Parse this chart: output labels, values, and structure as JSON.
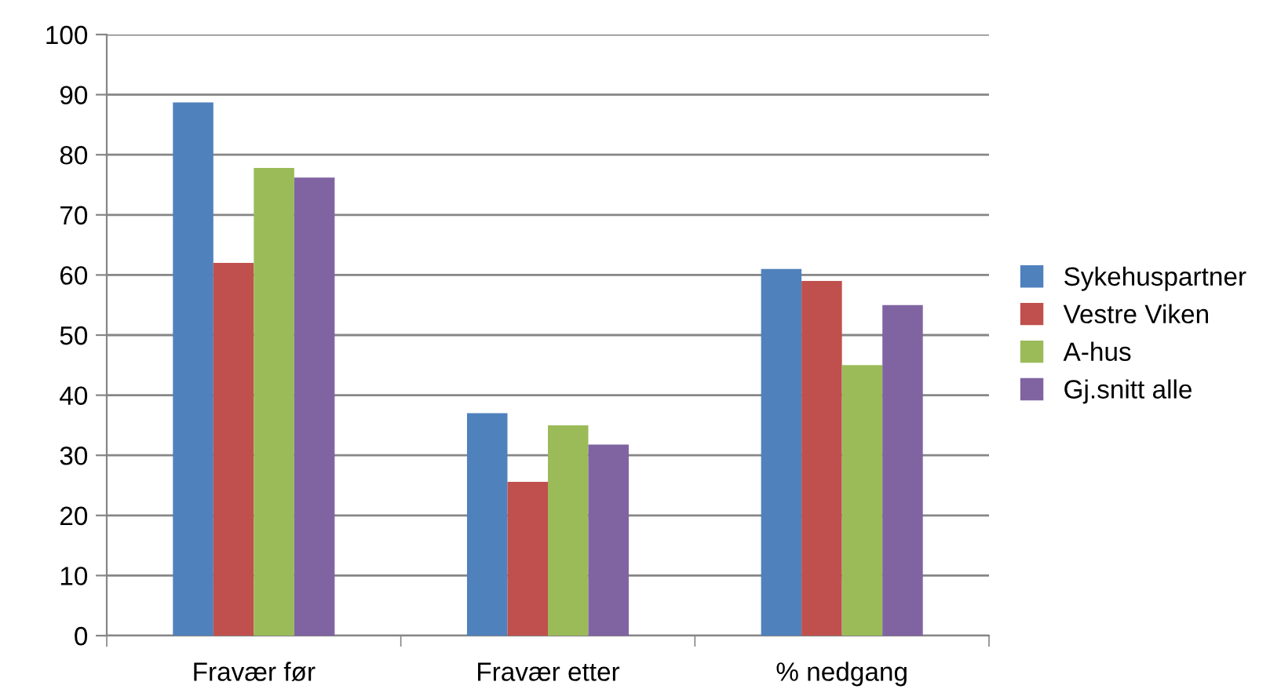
{
  "chart_data": {
    "type": "bar",
    "categories": [
      "Fravær før",
      "Fravær etter",
      "% nedgang"
    ],
    "series": [
      {
        "name": "Sykehuspartner",
        "color": "#4f81bd",
        "values": [
          88.7,
          37,
          61
        ]
      },
      {
        "name": "Vestre Viken",
        "color": "#c0504d",
        "values": [
          62,
          25.6,
          59
        ]
      },
      {
        "name": "A-hus",
        "color": "#9bbb59",
        "values": [
          77.8,
          35,
          45
        ]
      },
      {
        "name": "Gj.snitt alle",
        "color": "#8064a2",
        "values": [
          76.2,
          31.8,
          55
        ]
      }
    ],
    "ylim": [
      0,
      100
    ],
    "yticks": [
      0,
      10,
      20,
      30,
      40,
      50,
      60,
      70,
      80,
      90,
      100
    ],
    "grid": "y",
    "legend": "right"
  }
}
